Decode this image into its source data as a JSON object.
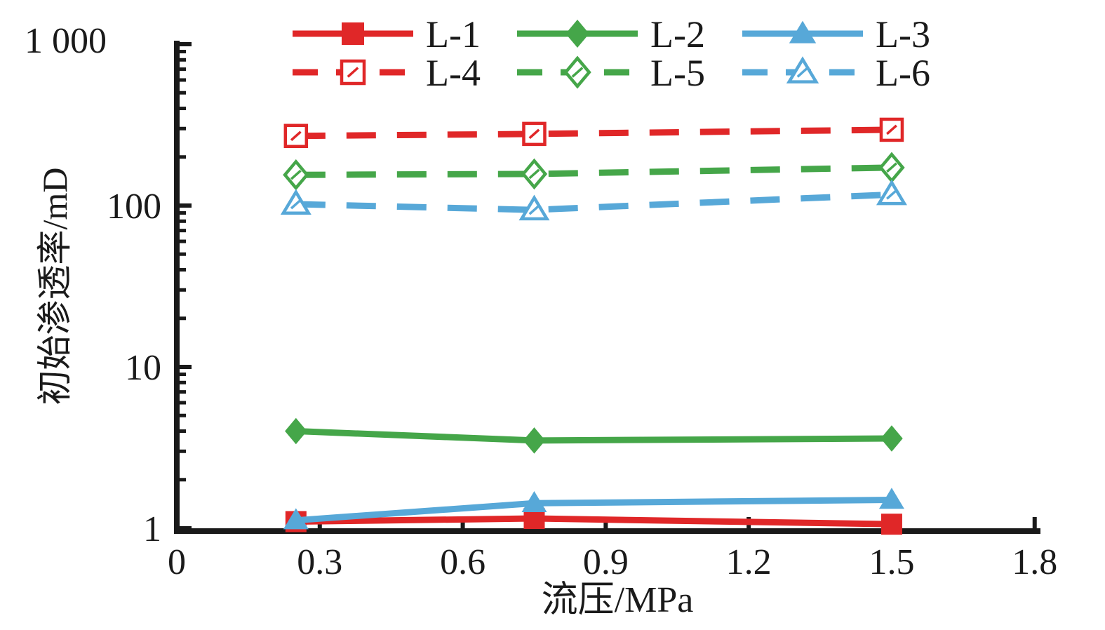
{
  "chart_data": {
    "type": "line",
    "title": "",
    "xlabel": "流压/MPa",
    "ylabel": "初始渗透率/mD",
    "x": [
      0.25,
      0.75,
      1.5
    ],
    "x_axis": {
      "min": 0,
      "max": 1.8,
      "ticks": [
        0,
        0.3,
        0.6,
        0.9,
        1.2,
        1.5,
        1.8
      ],
      "tick_labels": [
        "0",
        "0.3",
        "0.6",
        "0.9",
        "1.2",
        "1.5",
        "1.8"
      ]
    },
    "y_axis": {
      "scale": "log",
      "min": 1,
      "max": 1000,
      "ticks": [
        1,
        10,
        100,
        1000
      ],
      "tick_labels": [
        "1",
        "10",
        "100",
        "1 000"
      ]
    },
    "grid": false,
    "legend": {
      "position": "top",
      "rows": [
        [
          "L-1",
          "L-2",
          "L-3"
        ],
        [
          "L-4",
          "L-5",
          "L-6"
        ]
      ]
    },
    "series": [
      {
        "name": "L-1",
        "color": "#e02728",
        "line": "solid",
        "marker": "square-filled",
        "values": [
          1.1,
          1.15,
          1.06
        ]
      },
      {
        "name": "L-2",
        "color": "#45a649",
        "line": "solid",
        "marker": "diamond-filled",
        "values": [
          4.0,
          3.5,
          3.6
        ]
      },
      {
        "name": "L-3",
        "color": "#57a8d8",
        "line": "solid",
        "marker": "triangle-filled",
        "values": [
          1.12,
          1.43,
          1.5
        ]
      },
      {
        "name": "L-4",
        "color": "#e02728",
        "line": "dashed",
        "marker": "square-open",
        "values": [
          270,
          278,
          295
        ]
      },
      {
        "name": "L-5",
        "color": "#45a649",
        "line": "dashed",
        "marker": "diamond-open",
        "values": [
          155,
          157,
          172
        ]
      },
      {
        "name": "L-6",
        "color": "#57a8d8",
        "line": "dashed",
        "marker": "triangle-open",
        "values": [
          102,
          94,
          117
        ]
      }
    ],
    "axis_color": "#1a1a1a"
  }
}
